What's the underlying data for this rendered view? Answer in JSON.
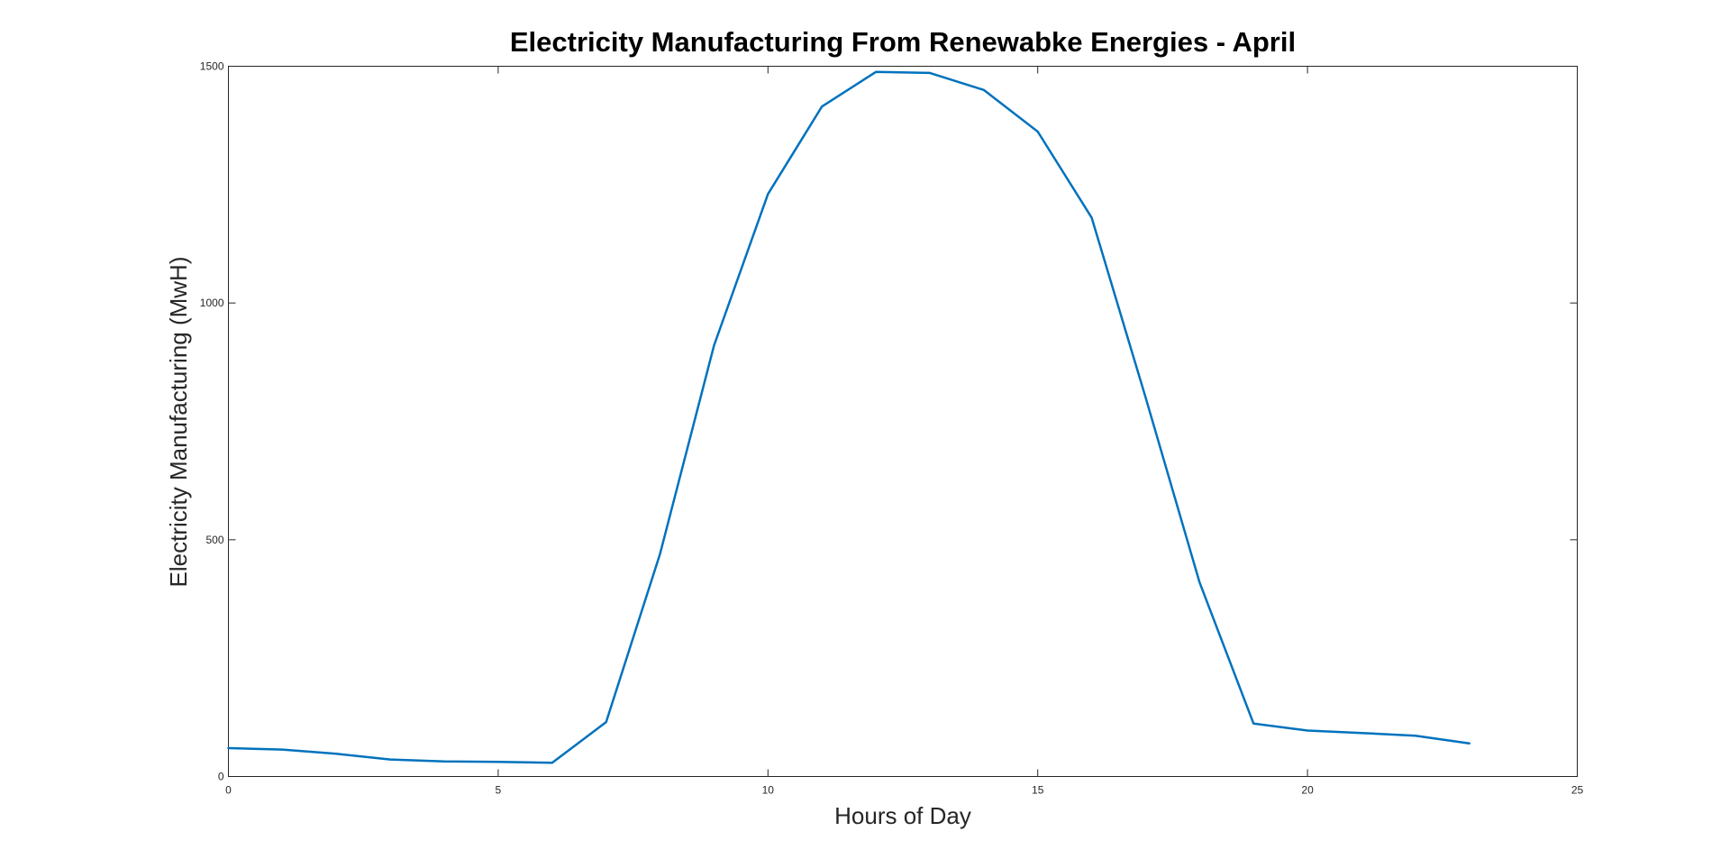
{
  "colors": {
    "background": "#ffffff",
    "axes": "#262626",
    "series_line": "#0072bd"
  },
  "chart_data": {
    "type": "line",
    "title": "Electricity Manufacturing From Renewabke Energies - April",
    "xlabel": "Hours of Day",
    "ylabel": "Electricity Manufacturing (MwH)",
    "xlim": [
      0,
      25
    ],
    "ylim": [
      0,
      1500
    ],
    "xticks": [
      0,
      5,
      10,
      15,
      20,
      25
    ],
    "yticks": [
      0,
      500,
      1000,
      1500
    ],
    "xtick_labels": [
      "0",
      "5",
      "10",
      "15",
      "20",
      "25"
    ],
    "ytick_labels": [
      "0",
      "500",
      "1000",
      "1500"
    ],
    "grid": false,
    "legend": "none",
    "series": [
      {
        "x": [
          0,
          1,
          2,
          3,
          4,
          5,
          6,
          7,
          8,
          9,
          10,
          11,
          12,
          13,
          14,
          15,
          16,
          17,
          18,
          19,
          20,
          21,
          22,
          23
        ],
        "values": [
          60,
          57,
          48,
          36,
          32,
          31,
          29,
          115,
          470,
          910,
          1230,
          1415,
          1488,
          1486,
          1450,
          1362,
          1180,
          800,
          410,
          112,
          97,
          92,
          86,
          70
        ]
      }
    ]
  }
}
